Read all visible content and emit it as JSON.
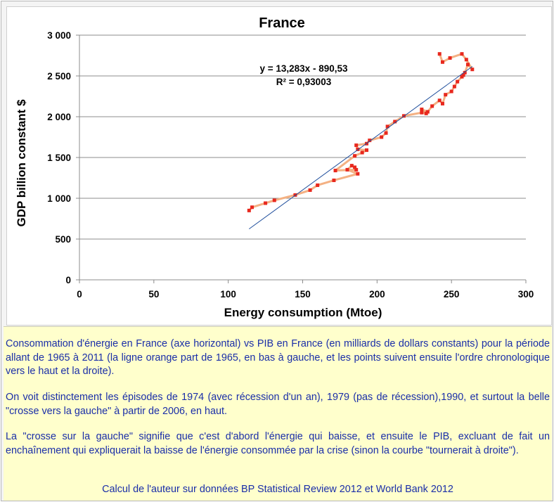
{
  "chart_data": {
    "type": "scatter",
    "title": "France",
    "xlabel": "Energy consumption (Mtoe)",
    "ylabel": "GDP billion constant $",
    "xlim": [
      0,
      300
    ],
    "ylim": [
      0,
      3000
    ],
    "xticks": [
      "0",
      "50",
      "100",
      "150",
      "200",
      "250",
      "300"
    ],
    "yticks": [
      "0",
      "500",
      "1 000",
      "1 500",
      "2 000",
      "2 500",
      "3 000"
    ],
    "grid": "horizontal",
    "legend": "none",
    "connecting_line_color": "#f4b183",
    "marker_color": "#e8281e",
    "trendline_color": "#1f4e9c",
    "trendline": {
      "slope": 13.283,
      "intercept": -890.53,
      "x_range": [
        114,
        264
      ]
    },
    "equation_label": "y = 13,283x - 890,53",
    "r2_label": "R² = 0,93003",
    "series": [
      {
        "x": [
          114,
          116,
          125,
          131,
          145,
          155,
          160,
          171,
          187,
          180,
          183,
          185,
          186,
          172,
          185,
          190,
          193,
          187,
          186,
          193,
          195,
          203,
          206,
          207,
          212,
          218,
          230,
          233,
          230,
          234,
          237,
          242,
          244,
          246,
          250,
          252,
          254,
          257,
          258,
          259,
          261,
          264,
          260,
          257,
          249,
          244,
          242
        ],
        "y": [
          850,
          890,
          940,
          975,
          1040,
          1100,
          1160,
          1220,
          1300,
          1350,
          1400,
          1380,
          1350,
          1340,
          1520,
          1560,
          1590,
          1600,
          1650,
          1670,
          1710,
          1750,
          1800,
          1880,
          1940,
          2010,
          2050,
          2040,
          2090,
          2060,
          2130,
          2200,
          2160,
          2270,
          2310,
          2370,
          2430,
          2490,
          2510,
          2540,
          2640,
          2580,
          2700,
          2770,
          2720,
          2670,
          2770
        ]
      }
    ]
  },
  "caption": {
    "p1": "Consommation d'énergie en France (axe horizontal) vs PIB en France (en milliards de dollars constants) pour la période allant de 1965 à 2011 (la ligne orange part de 1965, en bas à gauche, et les points suivent ensuite l'ordre chronologique vers le haut et la droite).",
    "p2": "On voit distinctement les épisodes de 1974 (avec récession d'un an), 1979 (pas de récession),1990, et surtout la belle \"crosse vers la gauche\" à partir de 2006, en haut.",
    "p3": "La \"crosse sur la gauche\" signifie que c'est d'abord l'énergie qui baisse, et ensuite le PIB, excluant de fait un enchaînement qui expliquerait la baisse de l'énergie consommée par la crise (sinon la courbe \"tournerait à droite\").",
    "source": "Calcul de l'auteur sur données BP Statistical Review 2012 et World Bank 2012"
  }
}
